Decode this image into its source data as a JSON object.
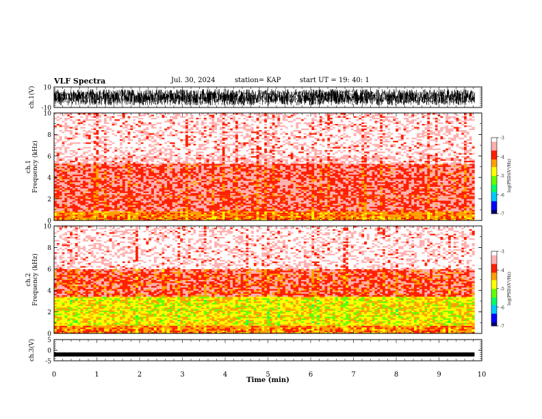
{
  "header": {
    "title": "VLF Spectra",
    "date": "Jul. 30, 2024",
    "station": "station= KAP",
    "start": "start UT =  19: 40: 1"
  },
  "chart_data": [
    {
      "type": "line",
      "panel": "ch1-waveform",
      "ylabel": "ch.1(V)",
      "ylim": [
        -10,
        10
      ],
      "y_ticks": [
        "10",
        "-10"
      ],
      "xlim": [
        0,
        10
      ],
      "data_end_min": 9.83,
      "envelope_v": [
        -8,
        8
      ]
    },
    {
      "type": "heatmap",
      "panel": "ch1-spectrogram",
      "ylabel": "ch.1\nFrequency (kHz)",
      "ylim": [
        0,
        10
      ],
      "y_ticks": [
        "0",
        "2",
        "4",
        "6",
        "8",
        "10"
      ],
      "xlim": [
        0,
        10
      ],
      "data_end_min": 9.83,
      "colorbar": {
        "label": "log(PSD)(V²/Hz)",
        "range": [
          -7,
          -3
        ],
        "ticks": [
          "-3",
          "-4",
          "-5",
          "-6",
          "-7"
        ]
      },
      "dominant_log_psd_by_band_khz": [
        {
          "band": [
            0,
            0.8
          ],
          "level": -4.2
        },
        {
          "band": [
            0.8,
            5.3
          ],
          "level": -3.7
        },
        {
          "band": [
            5.3,
            10
          ],
          "level": -3.3
        }
      ]
    },
    {
      "type": "heatmap",
      "panel": "ch2-spectrogram",
      "ylabel": "ch.2\nFrequency (kHz)",
      "ylim": [
        0,
        10
      ],
      "y_ticks": [
        "0",
        "2",
        "4",
        "6",
        "8",
        "10"
      ],
      "xlim": [
        0,
        10
      ],
      "data_end_min": 9.83,
      "colorbar": {
        "label": "log(PSD)(V²/Hz)",
        "range": [
          -7,
          -3
        ],
        "ticks": [
          "-3",
          "-4",
          "-5",
          "-6",
          "-7"
        ]
      },
      "dominant_log_psd_by_band_khz": [
        {
          "band": [
            0,
            0.7
          ],
          "level": -4.2
        },
        {
          "band": [
            0.7,
            3.5
          ],
          "level": -4.7
        },
        {
          "band": [
            3.5,
            6
          ],
          "level": -3.8
        },
        {
          "band": [
            6,
            10
          ],
          "level": -3.3
        }
      ]
    },
    {
      "type": "line",
      "panel": "ch3-waveform",
      "ylabel": "ch.3(V)",
      "ylim": [
        -5,
        5
      ],
      "y_ticks": [
        "5",
        "0",
        "-5"
      ],
      "xlim": [
        0,
        10
      ],
      "data_end_min": 9.83,
      "envelope_v": [
        -0.3,
        0.3
      ],
      "offset_v": -2.0
    }
  ],
  "xaxis": {
    "label": "Time (min)",
    "ticks": [
      "0",
      "1",
      "2",
      "3",
      "4",
      "5",
      "6",
      "7",
      "8",
      "9",
      "10"
    ]
  },
  "colors": {
    "waveform": "#000000",
    "colormap": [
      "#000066",
      "#0000ff",
      "#00c8ff",
      "#00ff66",
      "#66ff00",
      "#ffff00",
      "#ffa000",
      "#ff2000",
      "#ffb0b0",
      "#ffffff"
    ]
  }
}
